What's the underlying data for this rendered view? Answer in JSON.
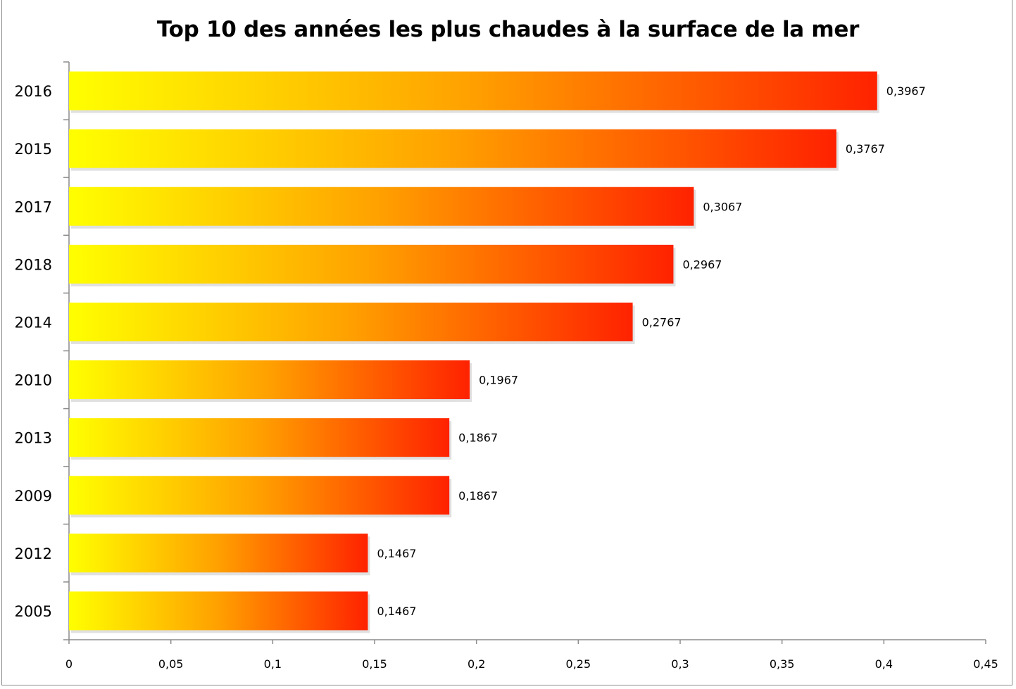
{
  "chart_data": {
    "type": "bar",
    "orientation": "horizontal",
    "title": "Top 10 des années les plus chaudes à la surface de la mer",
    "xlabel": "",
    "ylabel": "",
    "categories": [
      "2016",
      "2015",
      "2017",
      "2018",
      "2014",
      "2010",
      "2013",
      "2009",
      "2012",
      "2005"
    ],
    "values": [
      0.3967,
      0.3767,
      0.3067,
      0.2967,
      0.2767,
      0.1967,
      0.1867,
      0.1867,
      0.1467,
      0.1467
    ],
    "data_labels": [
      "0,3967",
      "0,3767",
      "0,3067",
      "0,2967",
      "0,2767",
      "0,1967",
      "0,1867",
      "0,1867",
      "0,1467",
      "0,1467"
    ],
    "xlim": [
      0,
      0.45
    ],
    "x_ticks": [
      0,
      0.05,
      0.1,
      0.15,
      0.2,
      0.25,
      0.3,
      0.35,
      0.4,
      0.45
    ],
    "x_tick_labels": [
      "0",
      "0,05",
      "0,1",
      "0,15",
      "0,2",
      "0,25",
      "0,3",
      "0,35",
      "0,4",
      "0,45"
    ],
    "grid": false,
    "legend": "none",
    "colors": {
      "gradient_start": "#ffff00",
      "gradient_end": "#ff2200",
      "axis": "#8c8c8c"
    }
  }
}
